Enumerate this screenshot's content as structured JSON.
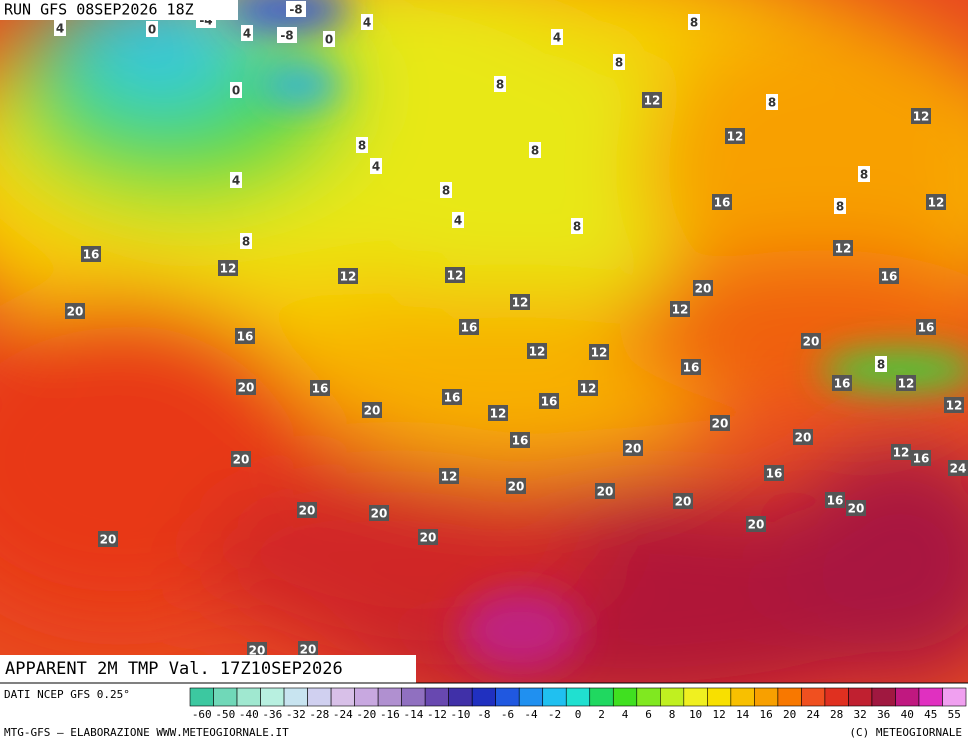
{
  "header": {
    "run": "RUN GFS 08SEP2026 18Z",
    "title": "APPARENT 2M TMP Val. 17Z10SEP2026"
  },
  "map": {
    "contour_labels": [
      -8,
      -4,
      -8,
      4,
      0,
      4,
      0,
      4,
      4,
      8,
      8,
      8,
      0,
      12,
      8,
      12,
      12,
      8,
      4,
      8,
      4,
      8,
      16,
      8,
      12,
      8,
      4,
      8,
      8,
      12,
      16,
      12,
      12,
      12,
      16,
      20,
      12,
      12,
      20,
      16,
      16,
      16,
      20,
      12,
      12,
      8,
      16,
      16,
      12,
      20,
      16,
      12,
      16,
      12,
      20,
      16,
      12,
      20,
      20,
      16,
      20,
      12,
      16,
      20,
      24,
      16,
      12,
      20,
      20,
      20,
      16,
      20,
      20,
      20,
      20,
      20,
      20,
      20,
      20
    ]
  },
  "colorbar": {
    "source": "DATI NCEP GFS 0.25°",
    "ticks": [
      {
        "value": -60,
        "color": "#3cc8a0"
      },
      {
        "value": -50,
        "color": "#70d8b8"
      },
      {
        "value": -40,
        "color": "#a0e8d0"
      },
      {
        "value": -36,
        "color": "#b8f0e0"
      },
      {
        "value": -32,
        "color": "#c8e4f0"
      },
      {
        "value": -28,
        "color": "#d0d0f0"
      },
      {
        "value": -24,
        "color": "#d8c0e8"
      },
      {
        "value": -20,
        "color": "#c8a8e0"
      },
      {
        "value": -16,
        "color": "#b090d0"
      },
      {
        "value": -14,
        "color": "#9070c0"
      },
      {
        "value": -12,
        "color": "#6848b0"
      },
      {
        "value": -10,
        "color": "#4030a8"
      },
      {
        "value": -8,
        "color": "#2030c0"
      },
      {
        "value": -6,
        "color": "#2058e0"
      },
      {
        "value": -4,
        "color": "#2090f0"
      },
      {
        "value": -2,
        "color": "#20c0f0"
      },
      {
        "value": 0,
        "color": "#20e0d0"
      },
      {
        "value": 2,
        "color": "#20d860"
      },
      {
        "value": 4,
        "color": "#40e020"
      },
      {
        "value": 6,
        "color": "#80e820"
      },
      {
        "value": 8,
        "color": "#c0f020"
      },
      {
        "value": 10,
        "color": "#f0f020"
      },
      {
        "value": 12,
        "color": "#f8e000"
      },
      {
        "value": 14,
        "color": "#f8c000"
      },
      {
        "value": 16,
        "color": "#f8a000"
      },
      {
        "value": 20,
        "color": "#f87800"
      },
      {
        "value": 24,
        "color": "#f05020"
      },
      {
        "value": 28,
        "color": "#e03020"
      },
      {
        "value": 32,
        "color": "#c02030"
      },
      {
        "value": 36,
        "color": "#a01840"
      },
      {
        "value": 40,
        "color": "#c01880"
      },
      {
        "value": 45,
        "color": "#e030c0"
      },
      {
        "value": 55,
        "color": "#f0a0f0"
      }
    ]
  },
  "footer": {
    "credit": "MTG-GFS — ELABORAZIONE WWW.METEOGIORNALE.IT",
    "copyright": "(C) METEOGIORNALE"
  }
}
